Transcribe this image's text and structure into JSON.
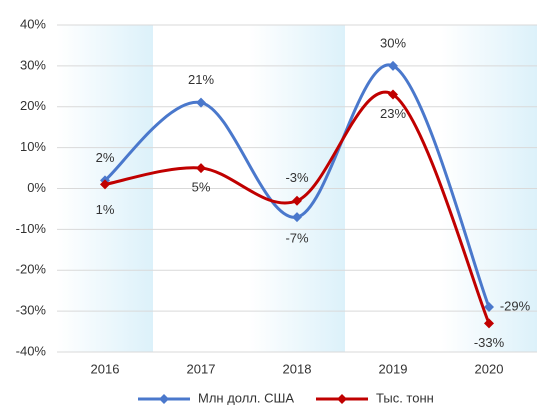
{
  "chart_data": {
    "type": "line",
    "categories": [
      "2016",
      "2017",
      "2018",
      "2019",
      "2020"
    ],
    "series": [
      {
        "name": "Млн долл. США",
        "color": "#4a78cc",
        "values": [
          2,
          21,
          -7,
          30,
          -29
        ],
        "value_labels": [
          "2%",
          "21%",
          "-7%",
          "30%",
          "-29%"
        ]
      },
      {
        "name": "Тыс. тонн",
        "color": "#c00000",
        "values": [
          1,
          5,
          -3,
          23,
          -33
        ],
        "value_labels": [
          "1%",
          "5%",
          "-3%",
          "23%",
          "-33%"
        ]
      }
    ],
    "ylim": [
      -40,
      40
    ],
    "yticks": [
      {
        "value": -40,
        "label": "-40%"
      },
      {
        "value": -30,
        "label": "-30%"
      },
      {
        "value": -20,
        "label": "-20%"
      },
      {
        "value": -10,
        "label": "-10%"
      },
      {
        "value": 0,
        "label": "0%"
      },
      {
        "value": 10,
        "label": "10%"
      },
      {
        "value": 20,
        "label": "20%"
      },
      {
        "value": 30,
        "label": "30%"
      },
      {
        "value": 40,
        "label": "40%"
      }
    ],
    "grid": true,
    "legend": "bottom",
    "smooth": true
  }
}
